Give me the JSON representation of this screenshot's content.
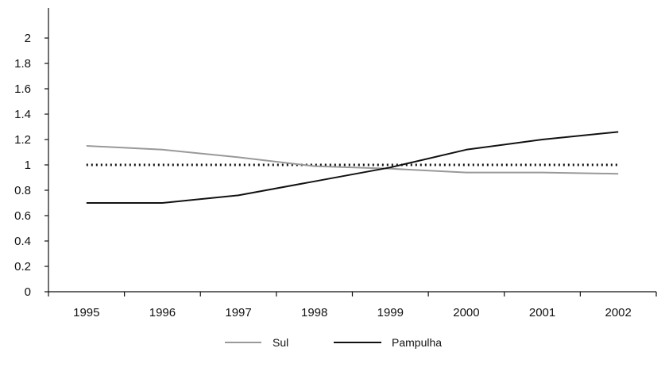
{
  "chart_data": {
    "type": "line",
    "title": "",
    "xlabel": "",
    "ylabel": "",
    "categories": [
      "1995",
      "1996",
      "1997",
      "1998",
      "1999",
      "2000",
      "2001",
      "2002"
    ],
    "ylim": [
      0,
      2.2
    ],
    "yticks": [
      0,
      0.2,
      0.4,
      0.6,
      0.8,
      1,
      1.2,
      1.4,
      1.6,
      1.8,
      2
    ],
    "ytick_labels": [
      "0",
      "0.2",
      "0.4",
      "0.6",
      "0.8",
      "1",
      "1.2",
      "1.4",
      "1.6",
      "1.8",
      "2"
    ],
    "grid": false,
    "legend_position": "bottom-center",
    "reference_line": {
      "value": 1,
      "style": "dotted",
      "color": "#111111"
    },
    "series": [
      {
        "name": "Sul",
        "color": "#999999",
        "values": [
          1.15,
          1.12,
          1.06,
          0.99,
          0.97,
          0.94,
          0.94,
          0.93
        ]
      },
      {
        "name": "Pampulha",
        "color": "#111111",
        "values": [
          0.7,
          0.7,
          0.76,
          0.87,
          0.98,
          1.12,
          1.2,
          1.26
        ]
      }
    ]
  }
}
